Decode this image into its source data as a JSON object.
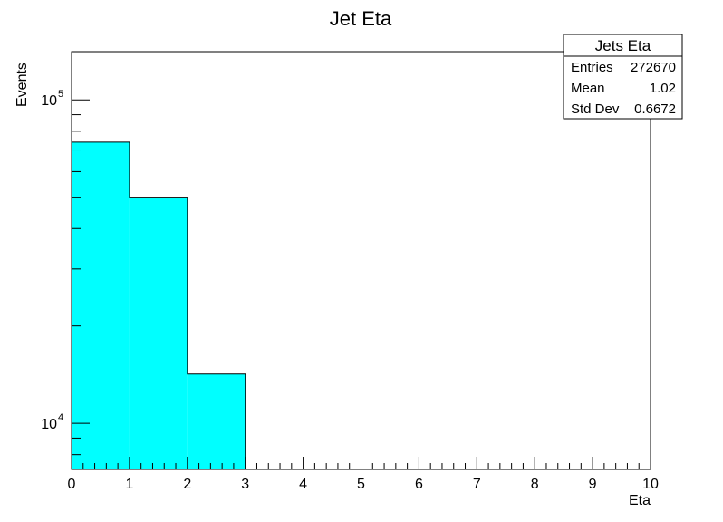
{
  "chart_data": {
    "type": "bar",
    "title": "Jet Eta",
    "xlabel": "Eta",
    "ylabel": "Events",
    "xlim": [
      0,
      10
    ],
    "ylim": [
      7200,
      141000
    ],
    "y_scale": "log",
    "x_ticks": [
      "0",
      "1",
      "2",
      "3",
      "4",
      "5",
      "6",
      "7",
      "8",
      "9",
      "10"
    ],
    "y_ticks": [
      {
        "value": 10000,
        "base": "10",
        "exp": "4"
      },
      {
        "value": 100000,
        "base": "10",
        "exp": "5"
      }
    ],
    "bins": [
      {
        "low": 0,
        "high": 1,
        "value": 74000
      },
      {
        "low": 1,
        "high": 2,
        "value": 50000
      },
      {
        "low": 2,
        "high": 3,
        "value": 14200
      }
    ],
    "fill_color": "#00ffff",
    "line_color": "#000000",
    "grid": false,
    "stats_box": {
      "title": "Jets Eta",
      "placement": "top-right",
      "rows": [
        {
          "label": "Entries",
          "value": "272670"
        },
        {
          "label": "Mean",
          "value": "1.02"
        },
        {
          "label": "Std Dev",
          "value": "0.6672"
        }
      ]
    }
  }
}
